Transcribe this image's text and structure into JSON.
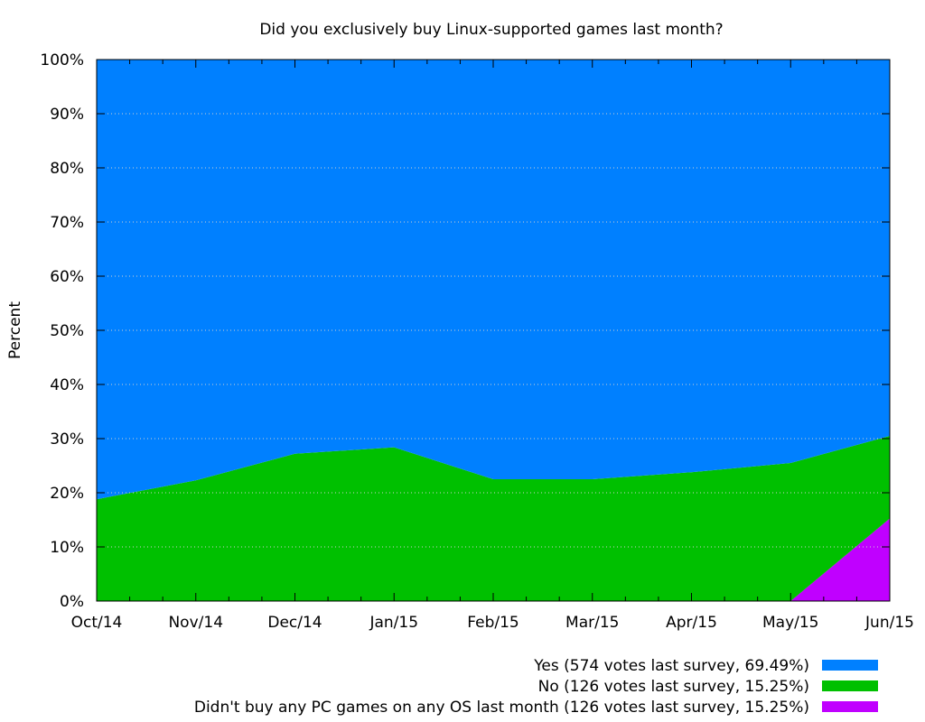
{
  "chart_data": {
    "type": "area",
    "stacked": true,
    "title": "Did you exclusively buy Linux-supported games last month?",
    "xlabel": "",
    "ylabel": "Percent",
    "categories": [
      "Oct/14",
      "Nov/14",
      "Dec/14",
      "Jan/15",
      "Feb/15",
      "Mar/15",
      "Apr/15",
      "May/15",
      "Jun/15"
    ],
    "x_positions": [
      0,
      1,
      2,
      3,
      4,
      5,
      6,
      7,
      8
    ],
    "ylim": [
      0,
      100
    ],
    "yticks": [
      0,
      10,
      20,
      30,
      40,
      50,
      60,
      70,
      80,
      90,
      100
    ],
    "ytick_labels": [
      "0%",
      "10%",
      "20%",
      "30%",
      "40%",
      "50%",
      "60%",
      "70%",
      "80%",
      "90%",
      "100%"
    ],
    "grid": true,
    "legend_position": "bottom-right",
    "series": [
      {
        "name": "Didn't buy any PC games on any OS last month (126 votes last survey, 15.25%)",
        "color": "#c000ff",
        "x": [
          0,
          1,
          2,
          3,
          4,
          5,
          6,
          7,
          8
        ],
        "values": [
          0,
          0,
          0,
          0,
          0,
          0,
          0,
          0,
          15.25
        ]
      },
      {
        "name": "No (126 votes last survey, 15.25%)",
        "color": "#00c000",
        "x": [
          0,
          1,
          2,
          3,
          4,
          5,
          6,
          7,
          8
        ],
        "values": [
          18.8,
          22.3,
          27.2,
          28.4,
          22.5,
          22.5,
          23.8,
          25.5,
          15.25
        ]
      },
      {
        "name": "Yes (574 votes last survey, 69.49%)",
        "color": "#0080ff",
        "x": [
          0,
          1,
          2,
          3,
          4,
          5,
          6,
          7,
          8
        ],
        "values": [
          81.2,
          77.7,
          72.8,
          71.6,
          77.5,
          77.5,
          76.2,
          74.5,
          69.49
        ]
      }
    ],
    "legend_order": [
      2,
      1,
      0
    ]
  }
}
